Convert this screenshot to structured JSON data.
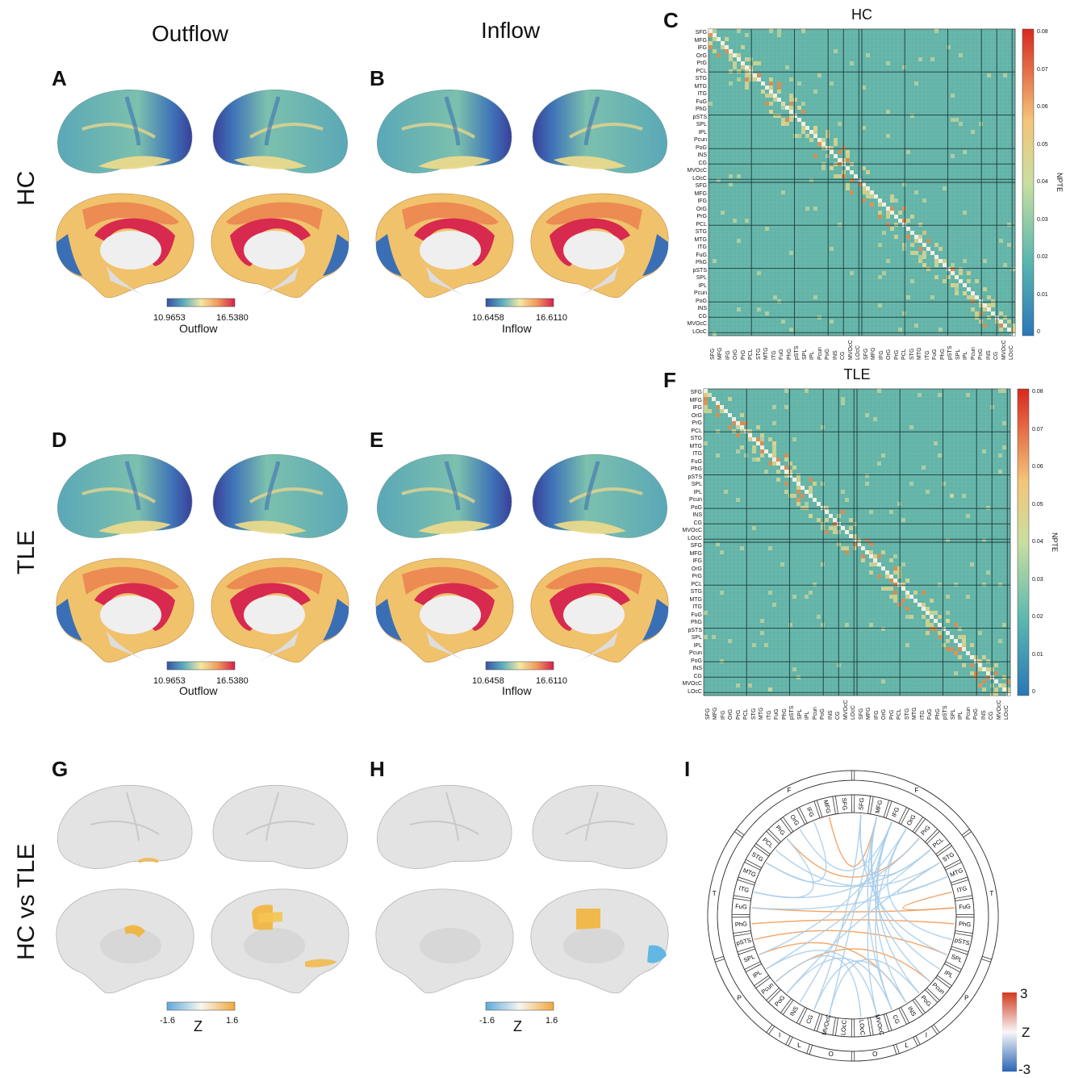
{
  "columns": {
    "outflow": "Outflow",
    "inflow": "Inflow"
  },
  "rows": {
    "hc": "HC",
    "tle": "TLE",
    "comparison": "HC vs TLE"
  },
  "panels": [
    "A",
    "B",
    "C",
    "D",
    "E",
    "F",
    "G",
    "H",
    "I"
  ],
  "colorbars": {
    "outflow": {
      "min": "10.9653",
      "max": "16.5380",
      "label": "Outflow"
    },
    "inflow": {
      "min": "10.6458",
      "max": "16.6110",
      "label": "Inflow"
    },
    "z": {
      "min": "-1.6",
      "max": "1.6",
      "label": "Z"
    },
    "chord": {
      "min": "-3",
      "max": "3",
      "label": "Z"
    }
  },
  "matrices": [
    {
      "title": "HC",
      "cbar_label": "NPTE"
    },
    {
      "title": "TLE",
      "cbar_label": "NPTE"
    }
  ],
  "npte_ticks": [
    "0",
    "0.01",
    "0.02",
    "0.03",
    "0.04",
    "0.05",
    "0.06",
    "0.07",
    "0.08"
  ],
  "region_labels": [
    "SFG",
    "MFG",
    "IFG",
    "OrG",
    "PrG",
    "PCL",
    "STG",
    "MTG",
    "ITG",
    "FuG",
    "PhG",
    "pSTS",
    "SPL",
    "IPL",
    "Pcun",
    "PoG",
    "INS",
    "CG",
    "MVOcC",
    "LOcC",
    "SFG",
    "MFG",
    "IFG",
    "OrG",
    "PrG",
    "PCL",
    "STG",
    "MTG",
    "ITG",
    "FuG",
    "PhG",
    "pSTS",
    "SPL",
    "IPL",
    "Pcun",
    "PoG",
    "INS",
    "CG",
    "MVOcC",
    "LOcC"
  ],
  "chord": {
    "lobes": [
      "F",
      "F",
      "T",
      "T",
      "P",
      "P",
      "I",
      "L",
      "L",
      "O",
      "O"
    ],
    "right_regions": [
      "SFG",
      "MFG",
      "IFG",
      "OrG",
      "PrG",
      "PCL",
      "STG",
      "MTG",
      "ITG",
      "FuG",
      "PhG",
      "pSTS",
      "SPL",
      "IPL",
      "Pcun",
      "PoG",
      "INS",
      "CG",
      "MVOcC",
      "LOcC"
    ],
    "left_regions": [
      "SFG",
      "MFG",
      "IFG",
      "OrG",
      "PrG",
      "PCL",
      "STG",
      "MTG",
      "ITG",
      "FuG",
      "PhG",
      "pSTS",
      "SPL",
      "IPL",
      "Pcun",
      "PoG",
      "INS",
      "CG",
      "MVOcC",
      "LOcC"
    ]
  },
  "colors": {
    "grid_bg": "#63b3a8",
    "block_line": "#1f3a3a",
    "hot": "#e8623a",
    "cold": "#8fc3e6"
  }
}
